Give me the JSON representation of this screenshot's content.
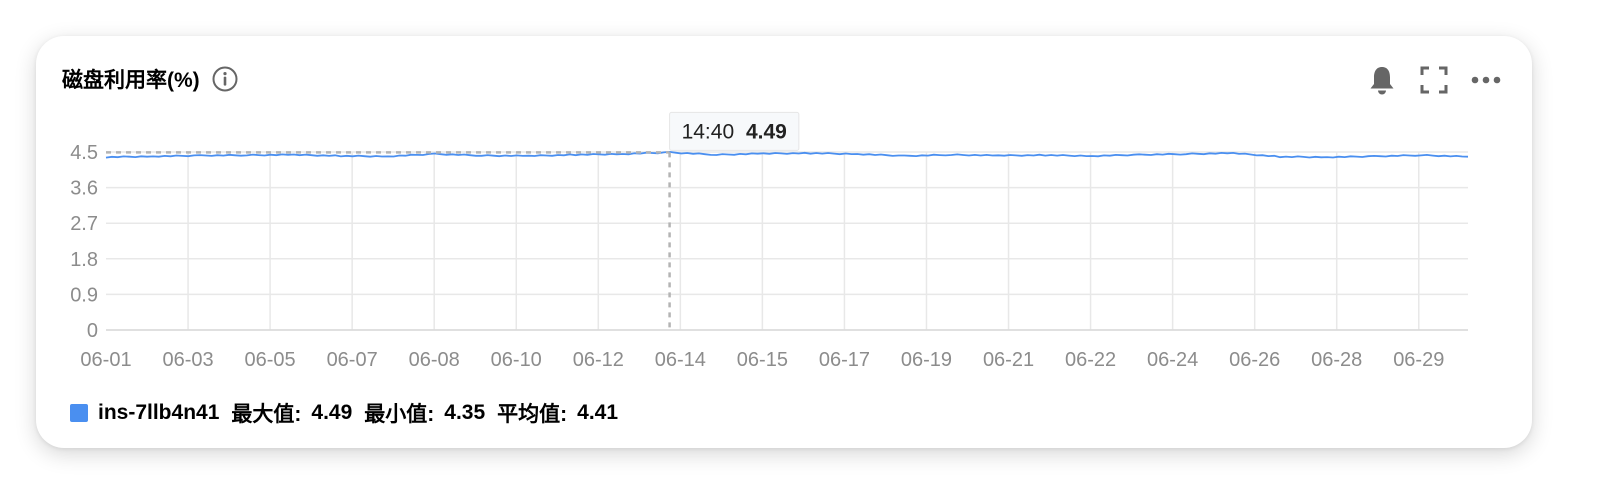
{
  "card": {
    "title": "磁盘利用率(%)",
    "info_icon": "info-icon",
    "tools": [
      {
        "name": "bell-icon"
      },
      {
        "name": "fullscreen-icon"
      },
      {
        "name": "more-icon"
      }
    ]
  },
  "tooltip": {
    "time": "14:40",
    "value": "4.49"
  },
  "legend": {
    "series_name": "ins-7llb4n41",
    "max_label": "最大值:",
    "max_value": "4.49",
    "min_label": "最小值:",
    "min_value": "4.35",
    "avg_label": "平均值:",
    "avg_value": "4.41"
  },
  "colors": {
    "series": "#4a8ff0",
    "grid": "#e8e8e8",
    "axis_text": "#8c8c8c",
    "crosshair": "#b4b4b4"
  },
  "chart_data": {
    "type": "line",
    "title": "磁盘利用率(%)",
    "x_ticks": [
      "06-01",
      "06-03",
      "06-05",
      "06-07",
      "06-08",
      "06-10",
      "06-12",
      "06-14",
      "06-15",
      "06-17",
      "06-19",
      "06-21",
      "06-22",
      "06-24",
      "06-26",
      "06-28",
      "06-29"
    ],
    "y_ticks": [
      "0",
      "0.9",
      "1.8",
      "2.7",
      "3.6",
      "4.5"
    ],
    "ylim": [
      0,
      4.5
    ],
    "grid": true,
    "legend_position": "bottom-left",
    "series": [
      {
        "name": "ins-7llb4n41",
        "x": [
          "06-01",
          "06-02",
          "06-03",
          "06-04",
          "06-05",
          "06-06",
          "06-07",
          "06-08",
          "06-09",
          "06-10",
          "06-11",
          "06-12",
          "06-13",
          "06-14",
          "06-15",
          "06-16",
          "06-17",
          "06-18",
          "06-19",
          "06-20",
          "06-21",
          "06-22",
          "06-23",
          "06-24",
          "06-25",
          "06-26",
          "06-27",
          "06-28",
          "06-29",
          "06-30"
        ],
        "values": [
          4.37,
          4.39,
          4.41,
          4.42,
          4.43,
          4.4,
          4.39,
          4.45,
          4.41,
          4.4,
          4.43,
          4.45,
          4.49,
          4.43,
          4.46,
          4.47,
          4.45,
          4.4,
          4.43,
          4.41,
          4.42,
          4.4,
          4.43,
          4.45,
          4.47,
          4.38,
          4.37,
          4.39,
          4.42,
          4.38
        ]
      }
    ],
    "summary": {
      "max": 4.49,
      "min": 4.35,
      "avg": 4.41
    },
    "tooltip_point": {
      "x": "14:40",
      "y": 4.49
    }
  }
}
